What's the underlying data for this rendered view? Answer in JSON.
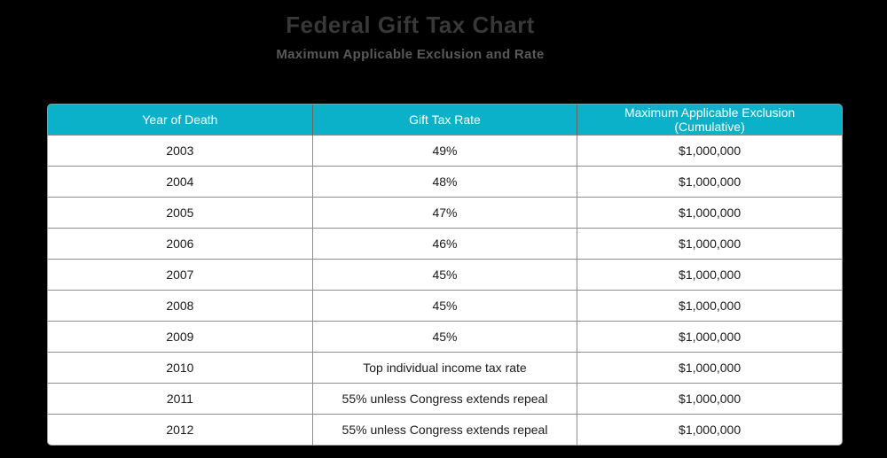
{
  "page": {
    "background_color": "#000000"
  },
  "chart_data": {
    "type": "table",
    "title": "Federal Gift Tax Chart",
    "subtitle": "Maximum Applicable Exclusion and Rate",
    "columns": [
      "Year of Death",
      "Gift Tax Rate",
      "Maximum Applicable Exclusion (Cumulative)"
    ],
    "rows": [
      [
        "2003",
        "49%",
        "$1,000,000"
      ],
      [
        "2004",
        "48%",
        "$1,000,000"
      ],
      [
        "2005",
        "47%",
        "$1,000,000"
      ],
      [
        "2006",
        "46%",
        "$1,000,000"
      ],
      [
        "2007",
        "45%",
        "$1,000,000"
      ],
      [
        "2008",
        "45%",
        "$1,000,000"
      ],
      [
        "2009",
        "45%",
        "$1,000,000"
      ],
      [
        "2010",
        "Top individual income tax rate",
        "$1,000,000"
      ],
      [
        "2011",
        "55% unless Congress extends repeal",
        "$1,000,000"
      ],
      [
        "2012",
        "55% unless Congress extends repeal",
        "$1,000,000"
      ]
    ]
  },
  "table": {
    "headers": [
      {
        "lines": [
          "Year of Death"
        ]
      },
      {
        "lines": [
          "Gift Tax Rate"
        ]
      },
      {
        "lines": [
          "Maximum Applicable Exclusion",
          "(Cumulative)"
        ]
      }
    ]
  },
  "colors": {
    "page_background": "#000000",
    "header_background": "#0bb1c8",
    "header_text": "#ffffff",
    "row_background": "#ffffff",
    "inner_border": "#8e8e8e",
    "outer_border": "#999999",
    "cell_text": "#1a1a1a",
    "title_text": "#383838",
    "subtitle_text": "#595959"
  }
}
